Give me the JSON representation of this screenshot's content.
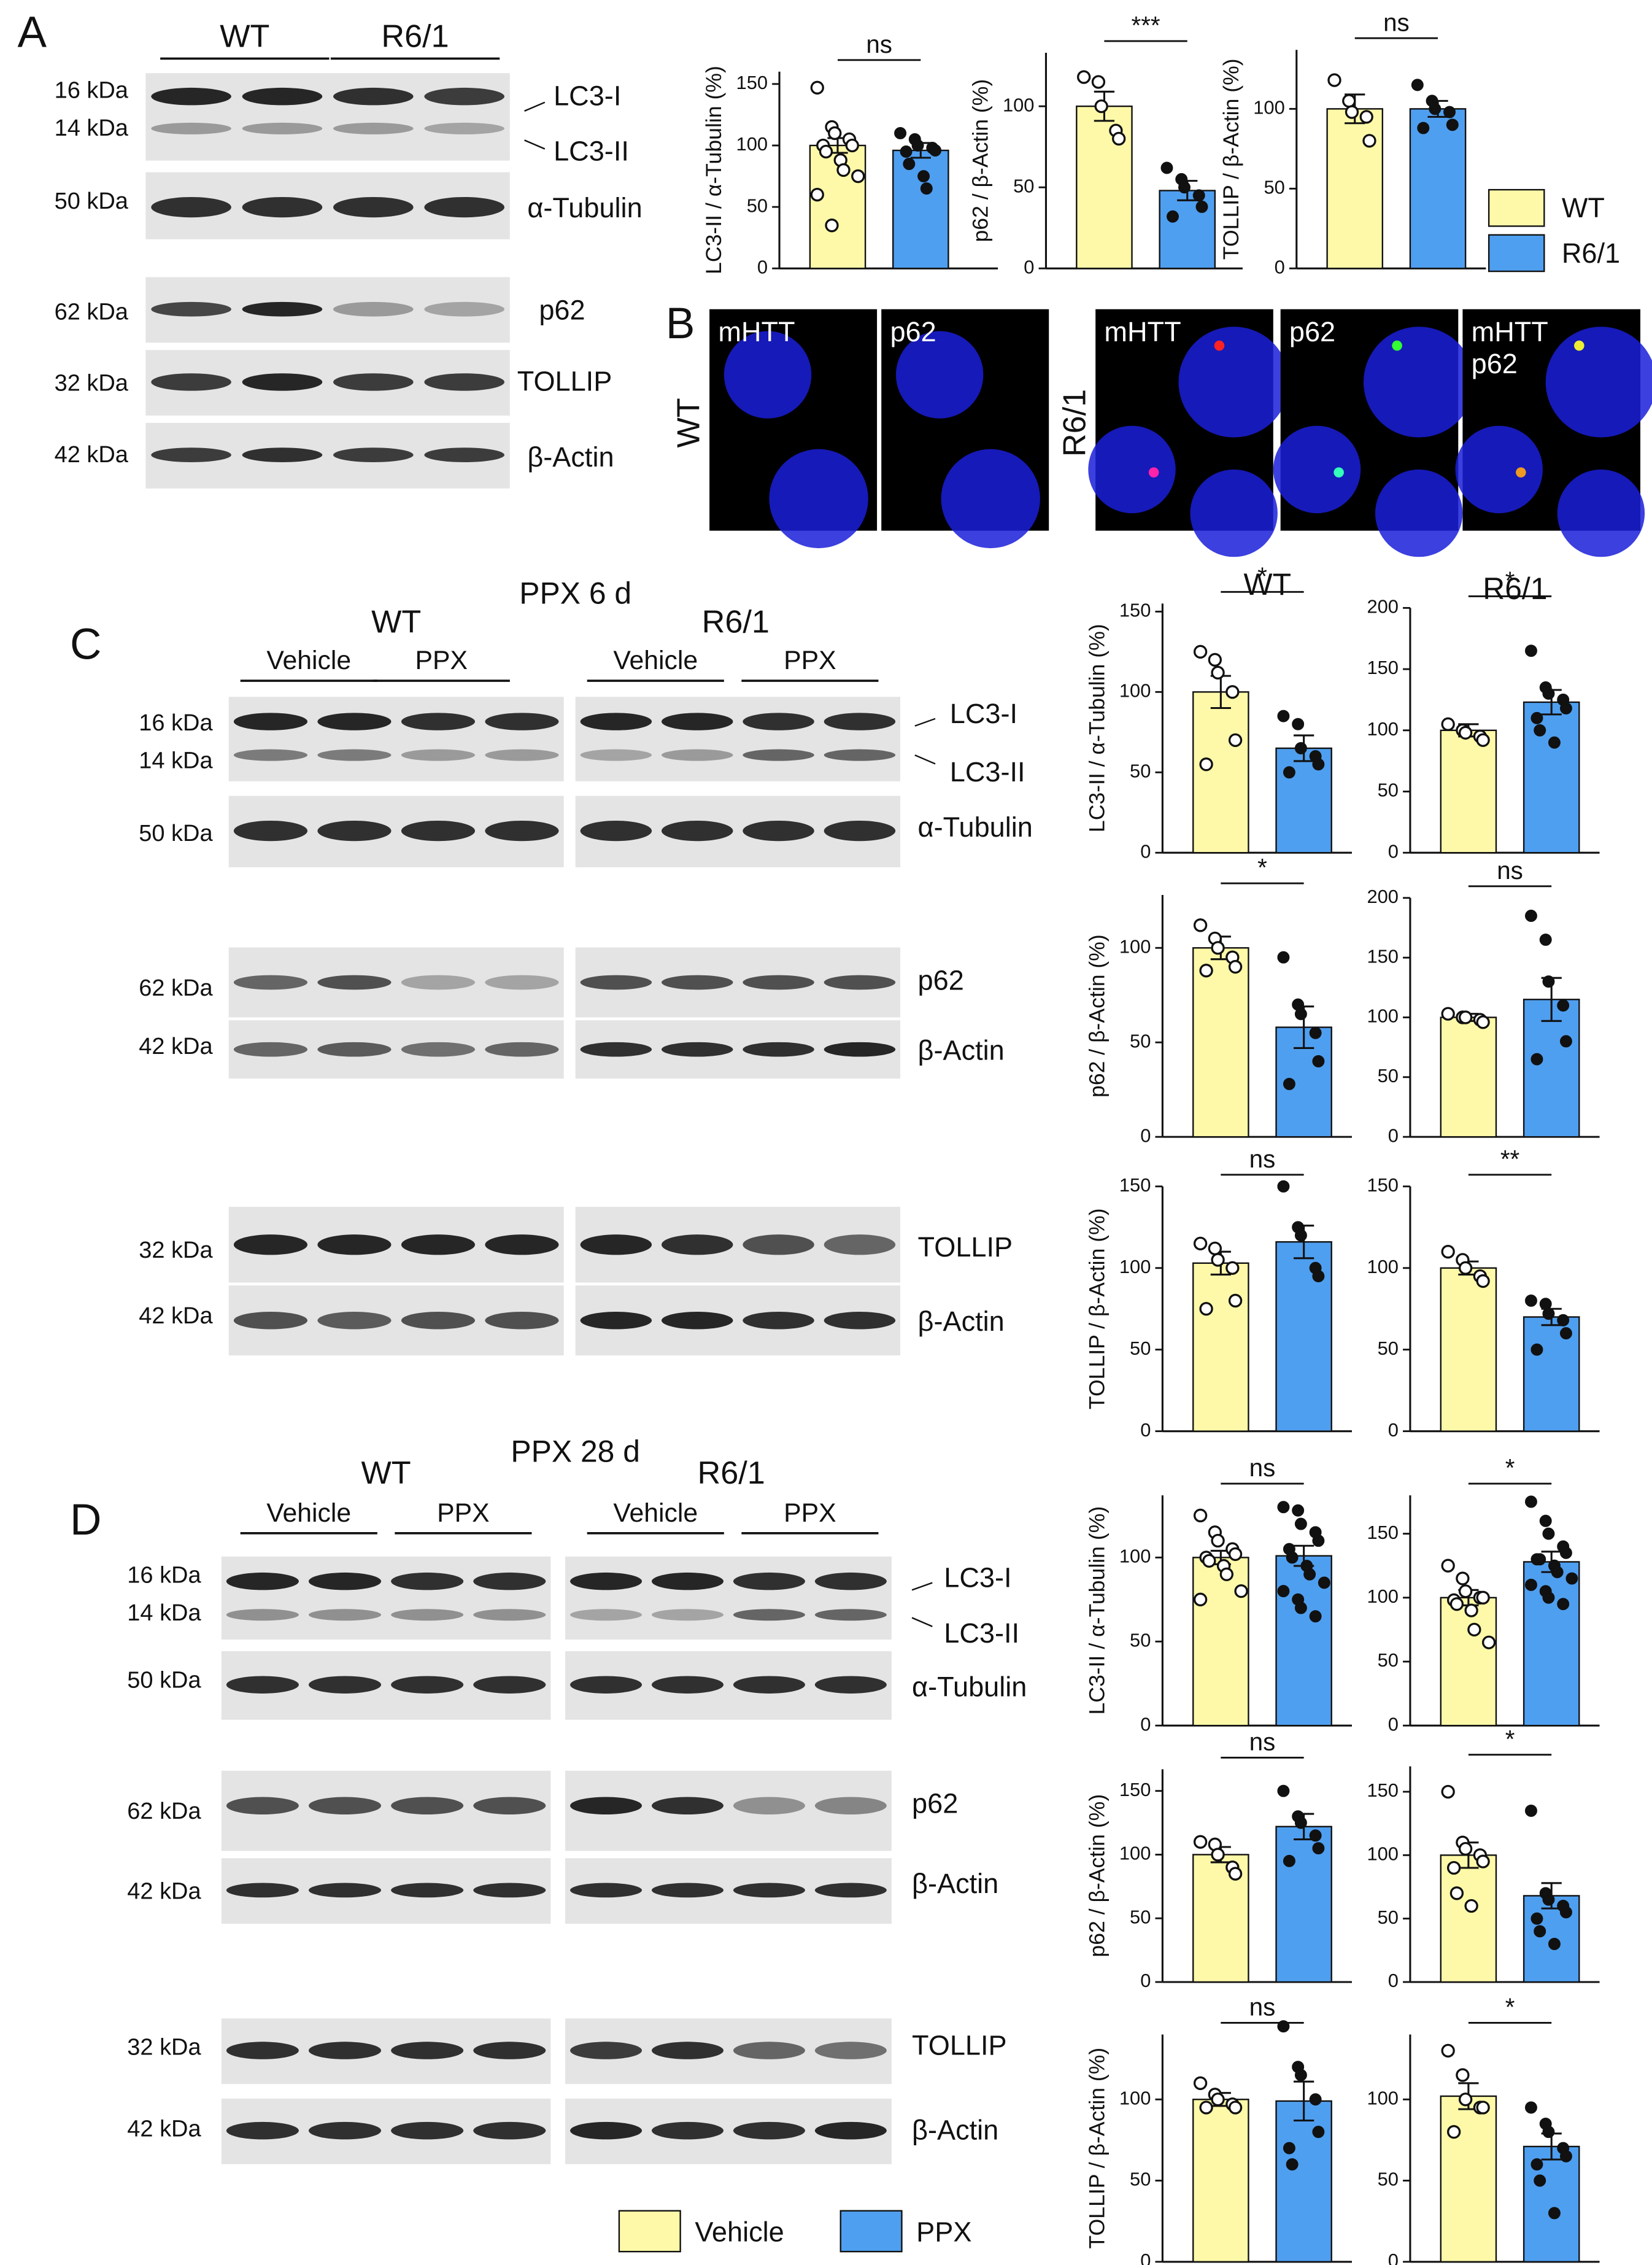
{
  "figure": {
    "panel_labels": [
      "A",
      "B",
      "C",
      "D"
    ],
    "panel_a": {
      "groups": [
        "WT",
        "R6/1"
      ],
      "kda": [
        "16 kDa",
        "14 kDa",
        "50 kDa",
        "62 kDa",
        "32 kDa",
        "42 kDa"
      ],
      "proteins": [
        "LC3-I",
        "LC3-II",
        "α-Tubulin",
        "p62",
        "TOLLIP",
        "β-Actin"
      ]
    },
    "panel_b": {
      "rows": [
        "WT",
        "R6/1"
      ],
      "channels": [
        "mHTT",
        "p62",
        "mHTT",
        "p62",
        "mHTT",
        "p62"
      ]
    },
    "panel_c": {
      "title": "PPX 6 d",
      "genotypes": [
        "WT",
        "R6/1"
      ],
      "treatments": [
        "Vehicle",
        "PPX",
        "Vehicle",
        "PPX"
      ],
      "kda": [
        "16 kDa",
        "14 kDa",
        "50 kDa",
        "62 kDa",
        "42 kDa",
        "32 kDa",
        "42 kDa"
      ],
      "proteins": [
        "LC3-I",
        "LC3-II",
        "α-Tubulin",
        "p62",
        "β-Actin",
        "TOLLIP",
        "β-Actin"
      ]
    },
    "panel_d": {
      "title": "PPX 28 d",
      "genotypes": [
        "WT",
        "R6/1"
      ],
      "treatments": [
        "Vehicle",
        "PPX",
        "Vehicle",
        "PPX"
      ],
      "kda": [
        "16 kDa",
        "14 kDa",
        "50 kDa",
        "62 kDa",
        "42 kDa",
        "32 kDa",
        "42 kDa"
      ],
      "proteins": [
        "LC3-I",
        "LC3-II",
        "α-Tubulin",
        "p62",
        "β-Actin",
        "TOLLIP",
        "β-Actin"
      ]
    }
  },
  "chart_data": [
    {
      "type": "bar",
      "ylabel": "LC3-II / α-Tubulin (%)",
      "ylim": [
        0,
        160
      ],
      "yticks": [
        0,
        50,
        100,
        150
      ],
      "annotation": "ns",
      "series": [
        {
          "name": "WT",
          "color": "#fdf9a8",
          "values": [
            100
          ],
          "errors": [
            6
          ],
          "points": [
            147,
            115,
            110,
            105,
            100,
            100,
            95,
            88,
            80,
            75,
            60,
            35
          ]
        },
        {
          "name": "R6/1",
          "color": "#4f9ff0",
          "values": [
            96
          ],
          "errors": [
            6
          ],
          "points": [
            110,
            105,
            100,
            98,
            96,
            95,
            85,
            75,
            65
          ]
        }
      ]
    },
    {
      "type": "bar",
      "ylabel": "p62 / β-Actin (%)",
      "ylim": [
        0,
        133
      ],
      "yticks": [
        0,
        50,
        100
      ],
      "annotation": "***",
      "series": [
        {
          "name": "WT",
          "color": "#fdf9a8",
          "values": [
            100
          ],
          "errors": [
            9
          ],
          "points": [
            118,
            115,
            100,
            85,
            80
          ]
        },
        {
          "name": "R6/1",
          "color": "#4f9ff0",
          "values": [
            48
          ],
          "errors": [
            6
          ],
          "points": [
            62,
            55,
            50,
            45,
            38,
            32
          ]
        }
      ]
    },
    {
      "type": "bar",
      "ylabel": "TOLLIP / β-Actin (%)",
      "ylim": [
        0,
        137
      ],
      "yticks": [
        0,
        50,
        100
      ],
      "annotation": "ns",
      "legend": true,
      "series": [
        {
          "name": "WT",
          "color": "#fdf9a8",
          "values": [
            100
          ],
          "errors": [
            9
          ],
          "points": [
            118,
            105,
            98,
            95,
            80
          ]
        },
        {
          "name": "R6/1",
          "color": "#4f9ff0",
          "values": [
            100
          ],
          "errors": [
            5
          ],
          "points": [
            115,
            105,
            100,
            98,
            90,
            88
          ]
        }
      ]
    },
    {
      "type": "bar",
      "title": "WT",
      "ylabel": "LC3-II / α-Tubulin (%)",
      "ylim": [
        0,
        155
      ],
      "yticks": [
        0,
        50,
        100,
        150
      ],
      "annotation": "*",
      "series": [
        {
          "name": "Vehicle",
          "color": "#fdf9a8",
          "values": [
            100
          ],
          "errors": [
            10
          ],
          "points": [
            125,
            120,
            112,
            100,
            70,
            55
          ]
        },
        {
          "name": "PPX",
          "color": "#4f9ff0",
          "values": [
            65
          ],
          "errors": [
            8
          ],
          "points": [
            85,
            80,
            65,
            60,
            55,
            50
          ]
        }
      ]
    },
    {
      "type": "bar",
      "title": "R6/1",
      "ylim": [
        0,
        200
      ],
      "yticks": [
        0,
        50,
        100,
        150,
        200
      ],
      "annotation": "*",
      "series": [
        {
          "name": "Vehicle",
          "color": "#fdf9a8",
          "values": [
            100
          ],
          "errors": [
            5
          ],
          "points": [
            105,
            100,
            98,
            95,
            92
          ]
        },
        {
          "name": "PPX",
          "color": "#4f9ff0",
          "values": [
            123
          ],
          "errors": [
            10
          ],
          "points": [
            165,
            135,
            130,
            125,
            118,
            110,
            100,
            90
          ]
        }
      ]
    },
    {
      "type": "bar",
      "ylabel": "p62 / β-Actin (%)",
      "ylim": [
        0,
        128
      ],
      "yticks": [
        0,
        50,
        100
      ],
      "annotation": "*",
      "series": [
        {
          "name": "Vehicle",
          "color": "#fdf9a8",
          "values": [
            100
          ],
          "errors": [
            6
          ],
          "points": [
            112,
            105,
            100,
            95,
            90,
            88
          ]
        },
        {
          "name": "PPX",
          "color": "#4f9ff0",
          "values": [
            58
          ],
          "errors": [
            11
          ],
          "points": [
            95,
            70,
            65,
            55,
            40,
            28
          ]
        }
      ]
    },
    {
      "type": "bar",
      "ylim": [
        0,
        200
      ],
      "yticks": [
        0,
        50,
        100,
        150,
        200
      ],
      "annotation": "ns",
      "series": [
        {
          "name": "Vehicle",
          "color": "#fdf9a8",
          "values": [
            100
          ],
          "errors": [
            3
          ],
          "points": [
            103,
            100,
            100,
            98,
            96
          ]
        },
        {
          "name": "PPX",
          "color": "#4f9ff0",
          "values": [
            115
          ],
          "errors": [
            18
          ],
          "points": [
            185,
            165,
            130,
            110,
            80,
            65
          ]
        }
      ]
    },
    {
      "type": "bar",
      "ylabel": "TOLLIP / β-Actin (%)",
      "ylim": [
        0,
        150
      ],
      "yticks": [
        0,
        50,
        100,
        150
      ],
      "annotation": "ns",
      "series": [
        {
          "name": "Vehicle",
          "color": "#fdf9a8",
          "values": [
            103
          ],
          "errors": [
            7
          ],
          "points": [
            115,
            112,
            105,
            100,
            80,
            75
          ]
        },
        {
          "name": "PPX",
          "color": "#4f9ff0",
          "values": [
            116
          ],
          "errors": [
            10
          ],
          "points": [
            150,
            125,
            120,
            100,
            95
          ]
        }
      ]
    },
    {
      "type": "bar",
      "ylim": [
        0,
        150
      ],
      "yticks": [
        0,
        50,
        100,
        150
      ],
      "annotation": "**",
      "series": [
        {
          "name": "Vehicle",
          "color": "#fdf9a8",
          "values": [
            100
          ],
          "errors": [
            4
          ],
          "points": [
            110,
            105,
            100,
            95,
            92
          ]
        },
        {
          "name": "PPX",
          "color": "#4f9ff0",
          "values": [
            70
          ],
          "errors": [
            5
          ],
          "points": [
            80,
            78,
            72,
            68,
            60,
            50
          ]
        }
      ]
    },
    {
      "type": "bar",
      "ylabel": "LC3-II / α-Tubulin (%)",
      "ylim": [
        0,
        137
      ],
      "yticks": [
        0,
        50,
        100
      ],
      "annotation": "ns",
      "series": [
        {
          "name": "Vehicle",
          "color": "#fdf9a8",
          "values": [
            100
          ],
          "errors": [
            4
          ],
          "points": [
            125,
            115,
            110,
            105,
            102,
            100,
            98,
            95,
            90,
            80,
            75
          ]
        },
        {
          "name": "PPX",
          "color": "#4f9ff0",
          "values": [
            101
          ],
          "errors": [
            6
          ],
          "points": [
            130,
            128,
            120,
            115,
            110,
            105,
            100,
            95,
            90,
            85,
            80,
            75,
            70,
            65
          ]
        }
      ]
    },
    {
      "type": "bar",
      "ylim": [
        0,
        180
      ],
      "yticks": [
        0,
        50,
        100,
        150
      ],
      "annotation": "*",
      "series": [
        {
          "name": "Vehicle",
          "color": "#fdf9a8",
          "values": [
            100
          ],
          "errors": [
            6
          ],
          "points": [
            125,
            115,
            105,
            100,
            100,
            98,
            95,
            90,
            75,
            65
          ]
        },
        {
          "name": "PPX",
          "color": "#4f9ff0",
          "values": [
            128
          ],
          "errors": [
            8
          ],
          "points": [
            175,
            160,
            150,
            140,
            135,
            130,
            130,
            125,
            120,
            115,
            110,
            105,
            100,
            95
          ]
        }
      ]
    },
    {
      "type": "bar",
      "ylabel": "p62 / β-Actin (%)",
      "ylim": [
        0,
        167
      ],
      "yticks": [
        0,
        50,
        100,
        150
      ],
      "annotation": "ns",
      "series": [
        {
          "name": "Vehicle",
          "color": "#fdf9a8",
          "values": [
            100
          ],
          "errors": [
            6
          ],
          "points": [
            110,
            108,
            100,
            90,
            85
          ]
        },
        {
          "name": "PPX",
          "color": "#4f9ff0",
          "values": [
            122
          ],
          "errors": [
            10
          ],
          "points": [
            150,
            130,
            125,
            115,
            105,
            95
          ]
        }
      ]
    },
    {
      "type": "bar",
      "ylim": [
        0,
        170
      ],
      "yticks": [
        0,
        50,
        100,
        150
      ],
      "annotation": "*",
      "series": [
        {
          "name": "Vehicle",
          "color": "#fdf9a8",
          "values": [
            100
          ],
          "errors": [
            10
          ],
          "points": [
            150,
            110,
            105,
            100,
            95,
            90,
            70,
            60
          ]
        },
        {
          "name": "PPX",
          "color": "#4f9ff0",
          "values": [
            68
          ],
          "errors": [
            10
          ],
          "points": [
            135,
            70,
            65,
            60,
            55,
            50,
            40,
            30
          ]
        }
      ]
    },
    {
      "type": "bar",
      "ylabel": "TOLLIP / β-Actin (%)",
      "ylim": [
        0,
        140
      ],
      "yticks": [
        0,
        50,
        100
      ],
      "annotation": "ns",
      "series": [
        {
          "name": "Vehicle",
          "color": "#fdf9a8",
          "values": [
            100
          ],
          "errors": [
            4
          ],
          "points": [
            110,
            103,
            100,
            97,
            95,
            95
          ]
        },
        {
          "name": "PPX",
          "color": "#4f9ff0",
          "values": [
            99
          ],
          "errors": [
            12
          ],
          "points": [
            145,
            120,
            115,
            100,
            80,
            70,
            60
          ]
        }
      ]
    },
    {
      "type": "bar",
      "ylim": [
        0,
        140
      ],
      "yticks": [
        0,
        50,
        100
      ],
      "annotation": "*",
      "legend": true,
      "series": [
        {
          "name": "Vehicle",
          "color": "#fdf9a8",
          "values": [
            102
          ],
          "errors": [
            8
          ],
          "points": [
            130,
            115,
            100,
            95,
            95,
            80
          ]
        },
        {
          "name": "PPX",
          "color": "#4f9ff0",
          "values": [
            71
          ],
          "errors": [
            8
          ],
          "points": [
            95,
            85,
            80,
            70,
            65,
            60,
            50,
            30
          ]
        }
      ]
    }
  ]
}
